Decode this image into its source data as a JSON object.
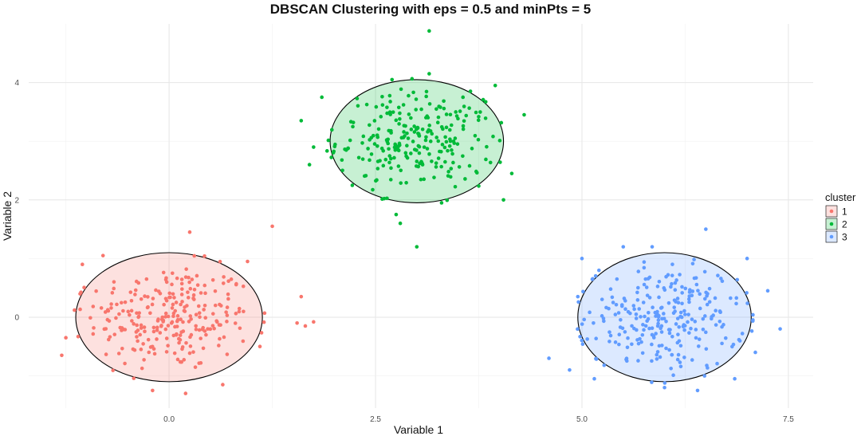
{
  "chart_data": {
    "type": "scatter",
    "title": "DBSCAN Clustering with eps = 0.5 and minPts = 5",
    "xlabel": "Variable 1",
    "ylabel": "Variable 2",
    "xlim": [
      -1.7,
      7.8
    ],
    "ylim": [
      -1.55,
      5.0
    ],
    "x_ticks": [
      "0.0",
      "2.5",
      "5.0",
      "7.5"
    ],
    "x_tick_values": [
      0,
      2.5,
      5,
      7.5
    ],
    "y_ticks": [
      "0",
      "2",
      "4"
    ],
    "y_tick_values": [
      0,
      2,
      4
    ],
    "grid": true,
    "legend": {
      "title": "cluster",
      "position": "right"
    },
    "series": [
      {
        "name": "1",
        "color": "#F8766D",
        "ellipse": {
          "cx": 0.0,
          "cy": 0.0,
          "rx": 1.13,
          "ry": 1.1
        },
        "center": [
          0.0,
          0.0
        ],
        "spread": [
          0.5,
          0.45
        ],
        "n": 260,
        "outliers": [
          [
            1.25,
            1.55
          ],
          [
            1.6,
            0.35
          ],
          [
            1.65,
            -0.15
          ],
          [
            1.75,
            -0.08
          ],
          [
            -1.25,
            -0.35
          ],
          [
            -1.3,
            -0.65
          ],
          [
            0.2,
            -1.3
          ],
          [
            -0.2,
            -1.25
          ],
          [
            0.65,
            -1.15
          ],
          [
            0.95,
            0.95
          ],
          [
            -0.8,
            1.05
          ],
          [
            0.25,
            1.45
          ],
          [
            1.1,
            -0.5
          ],
          [
            -1.05,
            0.9
          ],
          [
            1.55,
            -0.1
          ]
        ]
      },
      {
        "name": "2",
        "color": "#00BA38",
        "ellipse": {
          "cx": 3.0,
          "cy": 3.0,
          "rx": 1.05,
          "ry": 1.05
        },
        "center": [
          3.0,
          3.0
        ],
        "spread": [
          0.48,
          0.42
        ],
        "n": 250,
        "outliers": [
          [
            3.15,
            4.88
          ],
          [
            1.6,
            3.35
          ],
          [
            1.75,
            2.9
          ],
          [
            1.85,
            3.75
          ],
          [
            2.75,
            1.75
          ],
          [
            2.8,
            1.6
          ],
          [
            3.0,
            1.2
          ],
          [
            3.3,
            1.95
          ],
          [
            4.3,
            3.45
          ],
          [
            4.15,
            2.45
          ],
          [
            3.95,
            3.95
          ],
          [
            1.7,
            2.6
          ],
          [
            4.05,
            2.0
          ],
          [
            2.7,
            4.05
          ],
          [
            3.15,
            4.15
          ]
        ]
      },
      {
        "name": "3",
        "color": "#619CFF",
        "ellipse": {
          "cx": 6.0,
          "cy": 0.0,
          "rx": 1.05,
          "ry": 1.1
        },
        "center": [
          6.0,
          0.0
        ],
        "spread": [
          0.48,
          0.45
        ],
        "n": 260,
        "outliers": [
          [
            4.6,
            -0.7
          ],
          [
            4.85,
            -0.9
          ],
          [
            7.4,
            -0.2
          ],
          [
            7.25,
            0.45
          ],
          [
            6.5,
            1.5
          ],
          [
            5.85,
            1.2
          ],
          [
            5.0,
            1.0
          ],
          [
            6.0,
            -1.2
          ],
          [
            6.4,
            -1.25
          ],
          [
            7.1,
            -0.6
          ],
          [
            5.15,
            -1.05
          ],
          [
            7.0,
            1.0
          ],
          [
            4.95,
            0.35
          ],
          [
            6.85,
            -1.05
          ],
          [
            5.5,
            1.2
          ]
        ]
      }
    ]
  }
}
